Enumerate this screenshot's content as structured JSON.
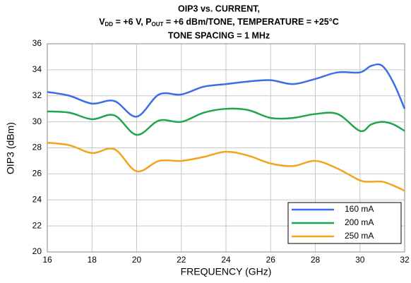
{
  "chart_data": {
    "type": "line",
    "title": "OIP3 vs. CURRENT,",
    "subtitle_parts": [
      "V",
      "DD",
      " = +6 V, P",
      "OUT",
      " = +6 dBm/TONE, TEMPERATURE = +25°C"
    ],
    "subtitle2": "TONE SPACING = 1 MHz",
    "x_label": "FREQUENCY (GHz)",
    "y_label": "OIP3 (dBm)",
    "x": [
      16,
      17,
      18,
      19,
      20,
      21,
      22,
      23,
      24,
      25,
      26,
      27,
      28,
      29,
      30,
      30.5,
      31,
      31.5,
      32
    ],
    "series": [
      {
        "name": "160 mA",
        "color": "#3a6ee8",
        "values": [
          32.3,
          32.0,
          31.4,
          31.6,
          30.4,
          32.1,
          32.1,
          32.7,
          32.9,
          33.1,
          33.2,
          32.9,
          33.3,
          33.8,
          33.8,
          34.3,
          34.3,
          33.0,
          31.0
        ]
      },
      {
        "name": "200 mA",
        "color": "#1fa64a",
        "values": [
          30.8,
          30.7,
          30.2,
          30.5,
          29.0,
          30.1,
          30.0,
          30.7,
          31.0,
          30.9,
          30.3,
          30.3,
          30.6,
          30.6,
          29.3,
          29.8,
          30.0,
          29.8,
          29.3
        ]
      },
      {
        "name": "250 mA",
        "color": "#f5a31a",
        "values": [
          28.4,
          28.2,
          27.6,
          27.9,
          26.2,
          27.0,
          27.0,
          27.3,
          27.7,
          27.4,
          26.8,
          26.6,
          27.0,
          26.4,
          25.5,
          25.4,
          25.4,
          25.1,
          24.7
        ]
      }
    ],
    "xlim": [
      16,
      32
    ],
    "xticks": [
      16,
      18,
      20,
      22,
      24,
      26,
      28,
      30,
      32
    ],
    "ylim": [
      20,
      36
    ],
    "yticks": [
      20,
      22,
      24,
      26,
      28,
      30,
      32,
      34,
      36
    ],
    "grid": true,
    "legend": "lower right"
  }
}
